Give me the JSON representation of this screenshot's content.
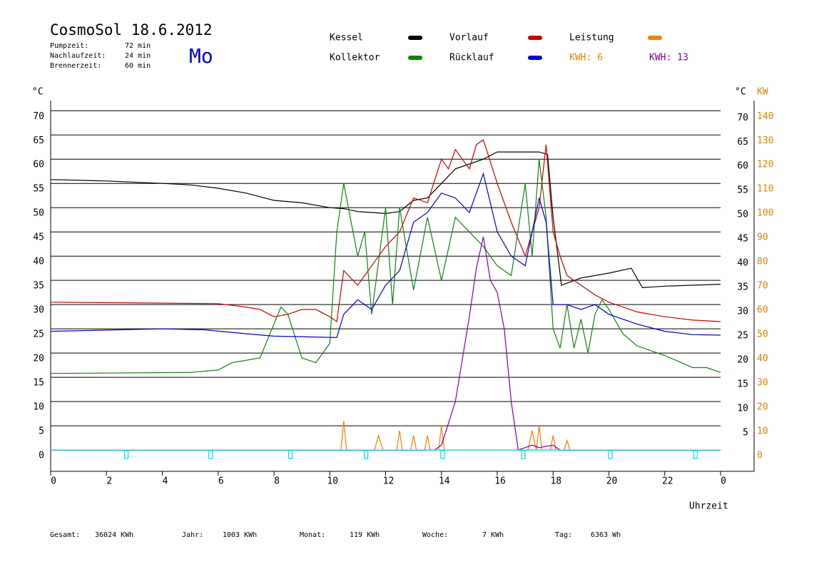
{
  "header": {
    "title": "CosmoSol 18.6.2012",
    "day": "Mo",
    "info": [
      [
        "Pumpzeit:",
        "72 min"
      ],
      [
        "Nachlaufzeit:",
        "24 min"
      ],
      [
        "Brennerzeit:",
        "60 min"
      ]
    ],
    "kwh_labels": [
      "KWH: 6",
      "KWH: 13"
    ]
  },
  "footer": [
    [
      "Gesamt:",
      "36024 KWh"
    ],
    [
      "Jahr:",
      "1003 KWh"
    ],
    [
      "Monat:",
      "119 KWh"
    ],
    [
      "Woche:",
      "7 KWh"
    ],
    [
      "Tag:",
      "6363 Wh"
    ]
  ],
  "chart_data": {
    "type": "line",
    "y_unit": "°C",
    "y2_unit_left": "°C",
    "y2_unit": "KW",
    "xlabel": "Uhrzeit",
    "xlim": [
      0,
      25.2
    ],
    "xticks": [
      0,
      2,
      4,
      6,
      8,
      10,
      12,
      14,
      16,
      18,
      20,
      22,
      {
        "value": 24,
        "label": "0"
      }
    ],
    "ylim": [
      -4.4,
      72.1
    ],
    "yticks": [
      0,
      5,
      10,
      15,
      20,
      25,
      30,
      35,
      40,
      45,
      50,
      55,
      60,
      65,
      70
    ],
    "y2lim": [
      -8.8,
      144.2
    ],
    "y2ticks": [
      0,
      10,
      20,
      30,
      40,
      50,
      60,
      70,
      80,
      90,
      100,
      110,
      120,
      130,
      140
    ],
    "grid": true,
    "series": [
      {
        "name": "Kessel",
        "color": "#000000",
        "x": [
          0,
          2,
          4,
          5,
          6,
          7,
          8,
          9,
          10,
          10.5,
          11,
          12,
          12.5,
          13,
          13.5,
          14,
          14.5,
          15,
          15.5,
          16,
          17,
          17.5,
          17.8,
          18,
          18.3,
          19,
          20,
          20.8,
          21.2,
          22,
          23,
          24
        ],
        "values": [
          55.8,
          55.5,
          55,
          54.7,
          54,
          53,
          51.5,
          51,
          50,
          49.8,
          49.2,
          48.8,
          49.2,
          51.5,
          52,
          55,
          58,
          59,
          60,
          61.5,
          61.5,
          61.5,
          61,
          48,
          34,
          35.5,
          36.5,
          37.5,
          33.5,
          33.8,
          34,
          34.2
        ]
      },
      {
        "name": "Vorlauf",
        "color": "#cc0000",
        "x": [
          0,
          6,
          7,
          7.5,
          8,
          8.5,
          9,
          9.5,
          10,
          10.25,
          10.5,
          11,
          11.5,
          12,
          12.5,
          13,
          13.5,
          14,
          14.25,
          14.5,
          15,
          15.25,
          15.5,
          16,
          16.5,
          17,
          17.5,
          17.75,
          18,
          18.25,
          18.5,
          19,
          19.5,
          20,
          21,
          22,
          23,
          24
        ],
        "values": [
          30.5,
          30.2,
          29.5,
          29,
          27.5,
          28,
          29,
          29,
          27.5,
          26.5,
          37,
          34,
          38,
          42,
          45,
          52,
          51,
          60,
          58,
          62,
          58,
          63,
          64,
          55,
          47,
          40,
          50,
          63,
          45,
          40,
          36,
          34,
          32,
          30.5,
          28.5,
          27.5,
          26.8,
          26.5
        ]
      },
      {
        "name": "Leistung",
        "color": "#f08000",
        "axis": "y2",
        "x": [
          0,
          10.4,
          10.5,
          10.6,
          11.6,
          11.75,
          11.9,
          12.4,
          12.5,
          12.6,
          12.9,
          13,
          13.1,
          13.4,
          13.5,
          13.6,
          13.9,
          14,
          14.1,
          17.1,
          17.25,
          17.4,
          17.5,
          17.6,
          17.9,
          18,
          18.1,
          18.4,
          18.5,
          18.6,
          24
        ],
        "values": [
          0,
          0,
          12,
          0,
          0,
          6,
          0,
          0,
          8,
          0,
          0,
          6,
          0,
          0,
          6,
          0,
          0,
          10,
          0,
          0,
          8,
          0,
          10,
          0,
          0,
          6,
          0,
          0,
          4,
          0,
          0
        ]
      },
      {
        "name": "Kollektor",
        "color": "#108010",
        "x": [
          0,
          5,
          6,
          6.5,
          7.5,
          8,
          8.25,
          8.5,
          9,
          9.5,
          10,
          10.25,
          10.5,
          11,
          11.25,
          11.5,
          12,
          12.25,
          12.5,
          13,
          13.5,
          14,
          14.5,
          15,
          15.5,
          16,
          16.5,
          17,
          17.25,
          17.5,
          17.75,
          18,
          18.25,
          18.5,
          18.75,
          19,
          19.25,
          19.5,
          19.75,
          20,
          20.5,
          21,
          22,
          23,
          23.5,
          24
        ],
        "values": [
          15.8,
          16,
          16.5,
          18,
          19,
          26,
          29.5,
          28,
          19,
          18,
          22,
          45,
          55,
          40,
          45,
          28,
          50,
          30,
          50,
          33,
          48,
          35,
          48,
          45,
          42,
          38,
          36,
          55,
          40,
          60,
          48,
          25,
          21,
          30,
          21,
          27,
          20,
          28,
          31,
          29,
          24,
          21.5,
          19.5,
          17,
          17,
          16
        ]
      },
      {
        "name": "Rücklauf",
        "color": "#0000cc",
        "x": [
          0,
          4,
          5.5,
          7,
          8,
          10.25,
          10.5,
          11,
          11.5,
          12,
          12.5,
          13,
          13.5,
          14,
          14.5,
          15,
          15.5,
          16,
          16.5,
          17,
          17.5,
          17.75,
          18,
          18.5,
          19,
          19.5,
          20,
          21,
          22,
          23,
          24
        ],
        "values": [
          24.5,
          25,
          24.8,
          24,
          23.5,
          23.2,
          28,
          31,
          29,
          34,
          37,
          47,
          49,
          53,
          52,
          49,
          57,
          45,
          40,
          38,
          52,
          47,
          30,
          30,
          29,
          30,
          28,
          26,
          24.5,
          23.8,
          23.7
        ]
      },
      {
        "color": "#8000a0",
        "axis": "y2",
        "x": [
          0,
          13.75,
          14,
          14.5,
          15,
          15.25,
          15.5,
          15.75,
          16,
          16.25,
          16.5,
          16.75,
          17,
          17.25,
          17.5,
          18,
          18.25,
          24
        ],
        "values": [
          0,
          0,
          2,
          20,
          55,
          75,
          88,
          70,
          65,
          50,
          20,
          0,
          1,
          2,
          1,
          2,
          0,
          0
        ]
      },
      {
        "color": "#00e0e0",
        "x": [
          0,
          24
        ],
        "values": [
          0,
          0
        ]
      }
    ],
    "markers": {
      "color": "#00e0e0",
      "x": [
        2.71,
        5.73,
        8.59,
        11.3,
        14.04,
        16.93,
        20.05,
        23.1
      ]
    }
  }
}
